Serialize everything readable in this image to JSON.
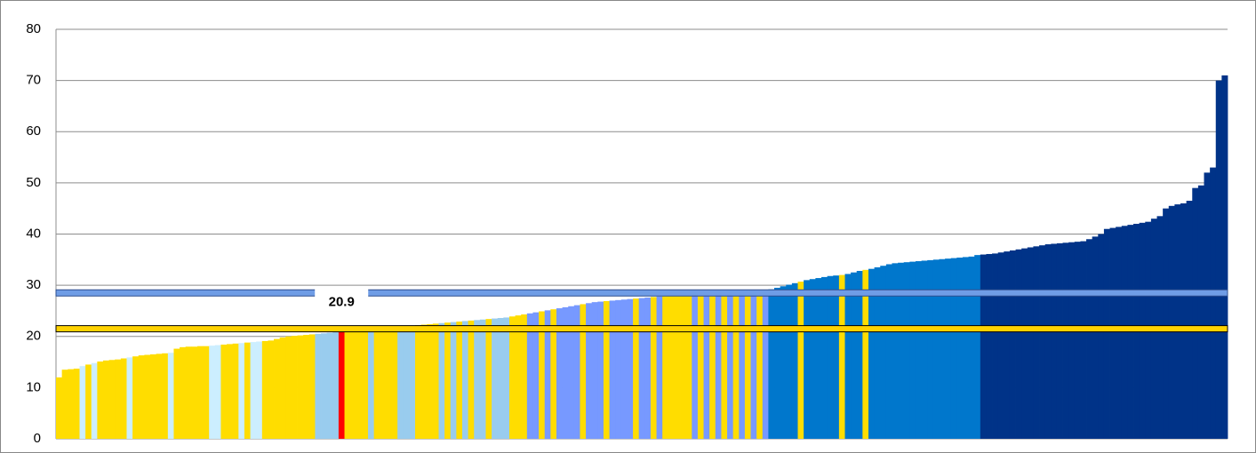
{
  "chart_data": {
    "type": "bar",
    "values": [
      12.0,
      13.5,
      13.6,
      13.7,
      14.2,
      14.5,
      14.8,
      15.1,
      15.3,
      15.4,
      15.5,
      15.7,
      15.9,
      16.1,
      16.3,
      16.4,
      16.5,
      16.6,
      16.7,
      16.8,
      17.6,
      17.9,
      18.0,
      18.0,
      18.1,
      18.1,
      18.2,
      18.3,
      18.4,
      18.5,
      18.6,
      18.7,
      18.8,
      18.9,
      19.0,
      19.1,
      19.2,
      19.5,
      19.8,
      20.0,
      20.1,
      20.2,
      20.3,
      20.4,
      20.5,
      20.6,
      20.7,
      20.8,
      20.9,
      21.0,
      21.1,
      21.2,
      21.3,
      21.4,
      21.5,
      21.6,
      21.7,
      21.8,
      21.9,
      22.0,
      22.1,
      22.2,
      22.3,
      22.4,
      22.5,
      22.6,
      22.7,
      22.8,
      22.9,
      23.0,
      23.1,
      23.2,
      23.3,
      23.4,
      23.5,
      23.6,
      23.7,
      23.9,
      24.1,
      24.3,
      24.5,
      24.7,
      24.9,
      25.1,
      25.3,
      25.5,
      25.7,
      25.9,
      26.1,
      26.3,
      26.5,
      26.7,
      26.8,
      26.9,
      27.0,
      27.1,
      27.2,
      27.3,
      27.4,
      27.5,
      27.6,
      27.7,
      27.8,
      27.9,
      28.0,
      28.0,
      28.1,
      28.1,
      28.2,
      28.2,
      28.3,
      28.3,
      28.4,
      28.4,
      28.5,
      28.5,
      28.6,
      28.7,
      28.8,
      28.9,
      29.0,
      29.2,
      29.5,
      29.8,
      30.1,
      30.4,
      30.7,
      31.0,
      31.2,
      31.4,
      31.6,
      31.8,
      31.9,
      32.0,
      32.2,
      32.5,
      32.8,
      33.0,
      33.2,
      33.5,
      33.8,
      34.1,
      34.3,
      34.4,
      34.5,
      34.6,
      34.7,
      34.8,
      34.9,
      35.0,
      35.1,
      35.2,
      35.3,
      35.4,
      35.5,
      35.6,
      35.9,
      36.0,
      36.1,
      36.2,
      36.4,
      36.6,
      36.8,
      37.0,
      37.2,
      37.4,
      37.6,
      37.8,
      38.0,
      38.1,
      38.2,
      38.3,
      38.4,
      38.5,
      38.6,
      39.0,
      39.5,
      40.0,
      41.0,
      41.2,
      41.4,
      41.6,
      41.8,
      42.0,
      42.2,
      42.4,
      43.0,
      43.5,
      45.0,
      45.5,
      45.8,
      46.0,
      46.5,
      49.0,
      49.5,
      52.0,
      53.0,
      70.0,
      71.0
    ],
    "colors": [
      "#fd0",
      "#fd0",
      "#fd0",
      "#fd0",
      "#cef",
      "#fd0",
      "#cef",
      "#fd0",
      "#fd0",
      "#fd0",
      "#fd0",
      "#fd0",
      "#cef",
      "#fd0",
      "#fd0",
      "#fd0",
      "#fd0",
      "#fd0",
      "#fd0",
      "#cef",
      "#fd0",
      "#fd0",
      "#fd0",
      "#fd0",
      "#fd0",
      "#fd0",
      "#cef",
      "#cef",
      "#fd0",
      "#fd0",
      "#fd0",
      "#cef",
      "#fd0",
      "#cef",
      "#cef",
      "#fd0",
      "#fd0",
      "#fd0",
      "#fd0",
      "#fd0",
      "#fd0",
      "#fd0",
      "#fd0",
      "#fd0",
      "#9ce",
      "#9ce",
      "#9ce",
      "#9ce",
      "#f00",
      "#fd0",
      "#fd0",
      "#fd0",
      "#fd0",
      "#9ce",
      "#fd0",
      "#fd0",
      "#fd0",
      "#fd0",
      "#9ce",
      "#9ce",
      "#9ce",
      "#fd0",
      "#fd0",
      "#fd0",
      "#fd0",
      "#9ce",
      "#fd0",
      "#9ce",
      "#fd0",
      "#9ce",
      "#fd0",
      "#9ce",
      "#9ce",
      "#fd0",
      "#9ce",
      "#9ce",
      "#9ce",
      "#fd0",
      "#fd0",
      "#fd0",
      "#79f",
      "#79f",
      "#fd0",
      "#79f",
      "#fd0",
      "#79f",
      "#79f",
      "#79f",
      "#79f",
      "#fd0",
      "#79f",
      "#79f",
      "#79f",
      "#fd0",
      "#79f",
      "#79f",
      "#79f",
      "#79f",
      "#fd0",
      "#79f",
      "#79f",
      "#fd0",
      "#79f",
      "#fd0",
      "#fd0",
      "#fd0",
      "#fd0",
      "#fd0",
      "#79f",
      "#fd0",
      "#79f",
      "#fd0",
      "#79f",
      "#fd0",
      "#79f",
      "#fd0",
      "#79f",
      "#fd0",
      "#79f",
      "#fd0",
      "#79f",
      "#07c",
      "#07c",
      "#07c",
      "#07c",
      "#07c",
      "#fd0",
      "#07c",
      "#07c",
      "#07c",
      "#07c",
      "#07c",
      "#07c",
      "#fd0",
      "#07c",
      "#07c",
      "#07c",
      "#fd0",
      "#07c",
      "#07c",
      "#07c",
      "#07c",
      "#07c",
      "#07c",
      "#07c",
      "#07c",
      "#07c",
      "#07c",
      "#07c",
      "#07c",
      "#07c",
      "#07c",
      "#07c",
      "#07c",
      "#07c",
      "#07c",
      "#07c",
      "#038",
      "#038",
      "#038",
      "#038",
      "#038",
      "#038",
      "#038",
      "#038",
      "#038",
      "#038",
      "#038",
      "#038",
      "#038",
      "#038",
      "#038",
      "#038",
      "#038",
      "#038",
      "#038",
      "#038",
      "#038",
      "#038",
      "#038",
      "#038",
      "#038",
      "#038",
      "#038",
      "#038",
      "#038",
      "#038",
      "#038",
      "#038",
      "#038",
      "#038",
      "#038",
      "#038",
      "#038",
      "#038",
      "#038",
      "#038",
      "#038",
      "#038"
    ],
    "reference_lines": [
      {
        "value": 28.5,
        "color": "#6f9de6"
      },
      {
        "value": 21.5,
        "color": "#ffd200"
      }
    ],
    "annotation": "20.9",
    "ylim": [
      0,
      80
    ],
    "yticks": [
      0,
      10,
      20,
      30,
      40,
      50,
      60,
      70,
      80
    ],
    "grid": true
  }
}
